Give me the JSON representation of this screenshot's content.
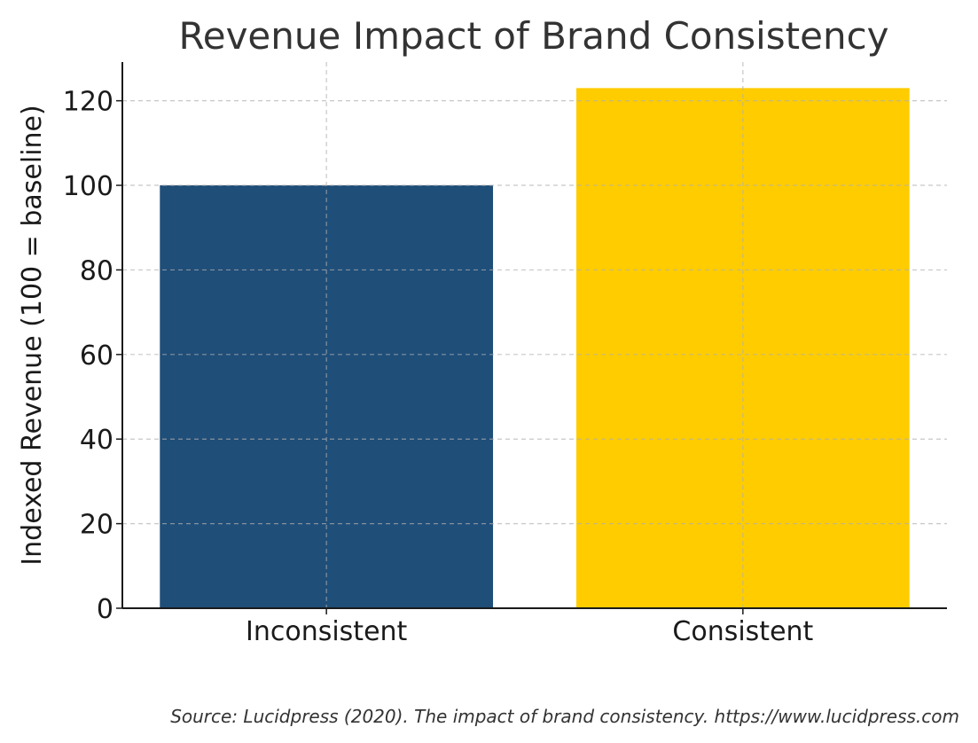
{
  "chart_data": {
    "type": "bar",
    "title": "Revenue Impact of Brand Consistency",
    "xlabel": "",
    "ylabel": "Indexed Revenue (100 = baseline)",
    "categories": [
      "Inconsistent",
      "Consistent"
    ],
    "values": [
      100,
      123
    ],
    "colors": [
      "#1f4e79",
      "#ffcc00"
    ],
    "ylim": [
      0,
      129.15
    ],
    "yticks": [
      0,
      20,
      40,
      60,
      80,
      100,
      120
    ],
    "ytick_labels": [
      "0",
      "20",
      "40",
      "60",
      "80",
      "100",
      "120"
    ],
    "grid": true,
    "source": "Source: Lucidpress (2020). The impact of brand consistency. https://www.lucidpress.com"
  }
}
